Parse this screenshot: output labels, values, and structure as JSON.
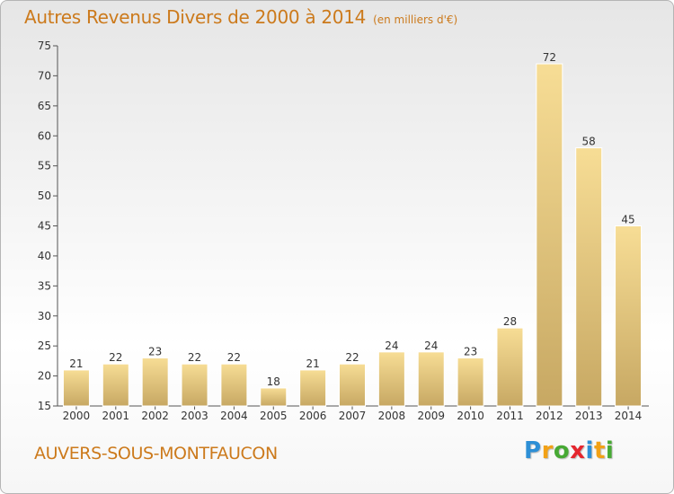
{
  "header": {
    "title": "Autres Revenus Divers de 2000 à 2014",
    "subtitle": "(en milliers d'€)"
  },
  "footer": {
    "commune": "AUVERS-SOUS-MONTFAUCON",
    "brand": "Proxiti"
  },
  "colors": {
    "bar_light": "#f7dd95",
    "bar_dark": "#c7a863",
    "accent_text": "#cc7a1c",
    "brand_letters": [
      "#2d8fd6",
      "#f2a116",
      "#47a934",
      "#e5262e",
      "#2d8fd6",
      "#f2a116",
      "#47a934"
    ]
  },
  "chart_data": {
    "type": "bar",
    "title": "Autres Revenus Divers de 2000 à 2014",
    "subtitle": "(en milliers d'€)",
    "categories": [
      "2000",
      "2001",
      "2002",
      "2003",
      "2004",
      "2005",
      "2006",
      "2007",
      "2008",
      "2009",
      "2010",
      "2011",
      "2012",
      "2013",
      "2014"
    ],
    "values": [
      21,
      22,
      23,
      22,
      22,
      18,
      21,
      22,
      24,
      24,
      23,
      28,
      72,
      58,
      45
    ],
    "xlabel": "",
    "ylabel": "",
    "ylim": [
      15,
      75
    ],
    "yticks": [
      15,
      20,
      25,
      30,
      35,
      40,
      45,
      50,
      55,
      60,
      65,
      70,
      75
    ],
    "grid": false,
    "legend": "none"
  }
}
